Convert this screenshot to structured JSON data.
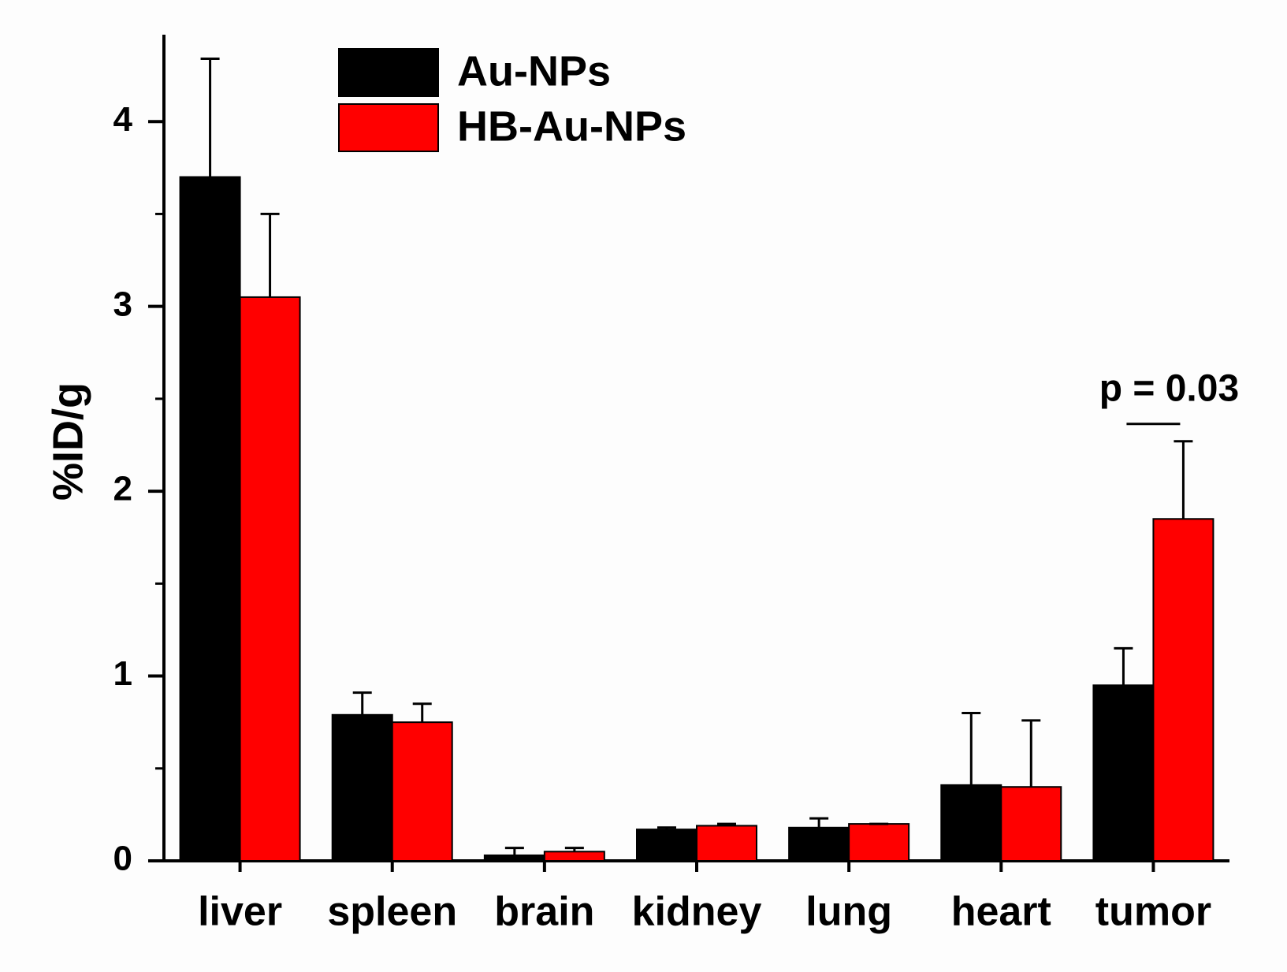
{
  "chart_data": {
    "type": "bar",
    "categories": [
      "liver",
      "spleen",
      "brain",
      "kidney",
      "lung",
      "heart",
      "tumor"
    ],
    "series": [
      {
        "name": "Au-NPs",
        "color": "#000000",
        "values": [
          3.7,
          0.79,
          0.03,
          0.17,
          0.18,
          0.41,
          0.95
        ],
        "errors": [
          0.64,
          0.12,
          0.04,
          0.01,
          0.05,
          0.39,
          0.2
        ]
      },
      {
        "name": "HB-Au-NPs",
        "color": "#ff0000",
        "values": [
          3.05,
          0.75,
          0.05,
          0.19,
          0.2,
          0.4,
          1.85
        ],
        "errors": [
          0.45,
          0.1,
          0.02,
          0.01,
          0,
          0.36,
          0.42
        ]
      }
    ],
    "y_label": "%ID/g",
    "ylim": [
      0,
      4.47
    ],
    "yticks": [
      0,
      1,
      2,
      3,
      4
    ],
    "yminorticks": [
      0.5,
      1.5,
      2.5,
      3.5
    ],
    "annotation": "p = 0.03",
    "grid": false,
    "legend": "top-left"
  }
}
